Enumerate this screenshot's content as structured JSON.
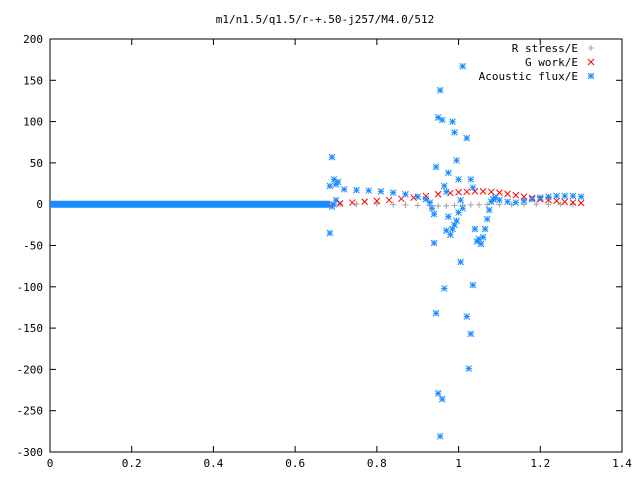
{
  "chart_data": {
    "type": "scatter",
    "title": "m1/n1.5/q1.5/r-+.50-j257/M4.0/512",
    "xlabel": "",
    "ylabel": "",
    "xlim": [
      0,
      1.4
    ],
    "ylim": [
      -300,
      200
    ],
    "x_ticks": [
      0,
      0.2,
      0.4,
      0.6,
      0.8,
      1,
      1.2,
      1.4
    ],
    "x_tick_labels": [
      "0",
      "0.2",
      "0.4",
      "0.6",
      "0.8",
      "1",
      "1.2",
      "1.4"
    ],
    "y_ticks": [
      -300,
      -250,
      -200,
      -150,
      -100,
      -50,
      0,
      50,
      100,
      150,
      200
    ],
    "y_tick_labels": [
      "-300",
      "-250",
      "-200",
      "-150",
      "-100",
      "-50",
      "0",
      "50",
      "100",
      "150",
      "200"
    ],
    "grid": false,
    "legend_position": "top-right",
    "series": [
      {
        "name": "R stress/E",
        "marker": "plus",
        "color": "#a0a0a0",
        "points": [
          [
            0.71,
            0.2
          ],
          [
            0.75,
            0.4
          ],
          [
            0.8,
            0.2
          ],
          [
            0.84,
            -0.5
          ],
          [
            0.87,
            -1.0
          ],
          [
            0.9,
            -1.5
          ],
          [
            0.93,
            -1.8
          ],
          [
            0.95,
            -2.0
          ],
          [
            0.97,
            -2.0
          ],
          [
            0.99,
            -1.5
          ],
          [
            1.01,
            -1.0
          ],
          [
            1.03,
            -0.8
          ],
          [
            1.05,
            -0.6
          ],
          [
            1.07,
            -0.5
          ],
          [
            1.1,
            -0.4
          ],
          [
            1.13,
            -0.3
          ],
          [
            1.16,
            -0.2
          ],
          [
            1.19,
            -0.1
          ],
          [
            1.22,
            0
          ],
          [
            1.25,
            0
          ],
          [
            1.28,
            0
          ]
        ]
      },
      {
        "name": "G work/E",
        "marker": "cross",
        "color": "#ff0000",
        "points": [
          [
            0.69,
            0
          ],
          [
            0.71,
            1
          ],
          [
            0.74,
            2
          ],
          [
            0.77,
            3
          ],
          [
            0.8,
            4
          ],
          [
            0.83,
            5
          ],
          [
            0.86,
            6.5
          ],
          [
            0.89,
            8
          ],
          [
            0.92,
            10
          ],
          [
            0.95,
            12
          ],
          [
            0.98,
            13.5
          ],
          [
            1.0,
            14.5
          ],
          [
            1.02,
            15
          ],
          [
            1.04,
            15.5
          ],
          [
            1.06,
            15.5
          ],
          [
            1.08,
            15
          ],
          [
            1.1,
            14
          ],
          [
            1.12,
            12.5
          ],
          [
            1.14,
            11
          ],
          [
            1.16,
            9
          ],
          [
            1.18,
            7.5
          ],
          [
            1.2,
            6
          ],
          [
            1.22,
            5
          ],
          [
            1.24,
            4
          ],
          [
            1.26,
            3
          ],
          [
            1.28,
            2
          ],
          [
            1.3,
            1.5
          ]
        ]
      },
      {
        "name": "Acoustic flux/E",
        "marker": "star",
        "color": "#1a8cff",
        "points": [
          [
            0.685,
            22
          ],
          [
            0.69,
            57
          ],
          [
            0.695,
            30
          ],
          [
            0.7,
            24
          ],
          [
            0.705,
            27
          ],
          [
            0.685,
            -35
          ],
          [
            0.69,
            -3
          ],
          [
            0.695,
            0
          ],
          [
            0.7,
            5
          ],
          [
            0.72,
            18
          ],
          [
            0.75,
            17
          ],
          [
            0.78,
            16.5
          ],
          [
            0.81,
            15.5
          ],
          [
            0.84,
            14
          ],
          [
            0.87,
            12
          ],
          [
            0.9,
            9
          ],
          [
            0.92,
            6
          ],
          [
            0.93,
            2
          ],
          [
            0.935,
            -5
          ],
          [
            0.94,
            -12
          ],
          [
            0.945,
            45
          ],
          [
            0.95,
            105
          ],
          [
            0.955,
            138
          ],
          [
            0.96,
            102
          ],
          [
            0.965,
            22
          ],
          [
            0.97,
            15
          ],
          [
            0.975,
            38
          ],
          [
            0.985,
            100
          ],
          [
            0.99,
            87
          ],
          [
            0.995,
            53
          ],
          [
            1.0,
            30
          ],
          [
            1.005,
            5
          ],
          [
            1.01,
            -5
          ],
          [
            1.02,
            80
          ],
          [
            1.03,
            30
          ],
          [
            1.035,
            20
          ],
          [
            1.01,
            167
          ],
          [
            0.94,
            -47
          ],
          [
            0.945,
            -132
          ],
          [
            0.95,
            -229
          ],
          [
            0.955,
            -281
          ],
          [
            0.96,
            -236
          ],
          [
            0.965,
            -102
          ],
          [
            0.97,
            -32
          ],
          [
            0.975,
            -15
          ],
          [
            0.98,
            -37
          ],
          [
            0.985,
            -30
          ],
          [
            0.99,
            -25
          ],
          [
            0.995,
            -20
          ],
          [
            1.0,
            -10
          ],
          [
            1.005,
            -70
          ],
          [
            1.02,
            -136
          ],
          [
            1.025,
            -199
          ],
          [
            1.03,
            -157
          ],
          [
            1.035,
            -98
          ],
          [
            1.04,
            -30
          ],
          [
            1.045,
            -45
          ],
          [
            1.05,
            -42
          ],
          [
            1.055,
            -48
          ],
          [
            1.06,
            -40
          ],
          [
            1.065,
            -30
          ],
          [
            1.07,
            -18
          ],
          [
            1.075,
            -7
          ],
          [
            1.08,
            3
          ],
          [
            1.085,
            6
          ],
          [
            1.09,
            8
          ],
          [
            1.1,
            5
          ],
          [
            1.12,
            3
          ],
          [
            1.14,
            2
          ],
          [
            1.16,
            4
          ],
          [
            1.18,
            6
          ],
          [
            1.2,
            8
          ],
          [
            1.22,
            9
          ],
          [
            1.24,
            10
          ],
          [
            1.26,
            10
          ],
          [
            1.28,
            10
          ],
          [
            1.3,
            9
          ]
        ],
        "baseline_segment": {
          "x_from": 0,
          "x_to": 0.685,
          "y": 0
        }
      }
    ]
  }
}
